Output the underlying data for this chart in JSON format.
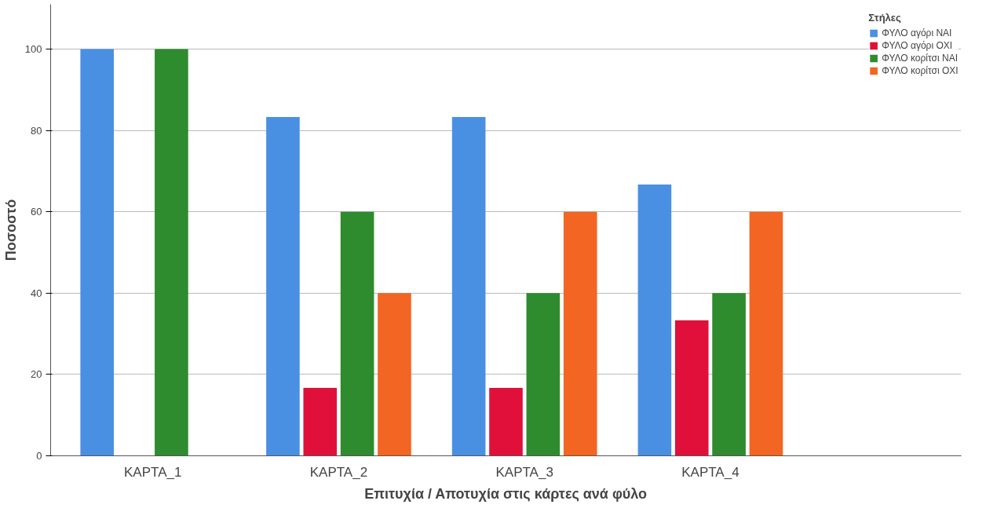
{
  "chart_data": {
    "type": "bar",
    "xlabel": "Επιτυχία / Αποτυχία στις κάρτες ανά φύλο",
    "ylabel": "Ποσοστό",
    "legend_title": "Στήλες",
    "categories": [
      "ΚΑΡΤΑ_1",
      "ΚΑΡΤΑ_2",
      "ΚΑΡΤΑ_3",
      "ΚΑΡΤΑ_4"
    ],
    "series": [
      {
        "name": "ΦΥΛΟ αγόρι ΝΑΙ",
        "color": "#4a90e2",
        "values": [
          100,
          83.3,
          83.3,
          66.7
        ]
      },
      {
        "name": "ΦΥΛΟ αγόρι ΟΧΙ",
        "color": "#e0103a",
        "values": [
          null,
          16.7,
          16.7,
          33.3
        ]
      },
      {
        "name": "ΦΥΛΟ κορίτσι ΝΑΙ",
        "color": "#2e8b2e",
        "values": [
          100,
          60,
          40,
          40
        ]
      },
      {
        "name": "ΦΥΛΟ κορίτσι ΟΧΙ",
        "color": "#f26522",
        "values": [
          null,
          40,
          60,
          60
        ]
      }
    ],
    "ylim": [
      0,
      111
    ],
    "yticks": [
      0,
      20,
      40,
      60,
      80,
      100
    ],
    "grid": "y",
    "legend": "top right"
  }
}
